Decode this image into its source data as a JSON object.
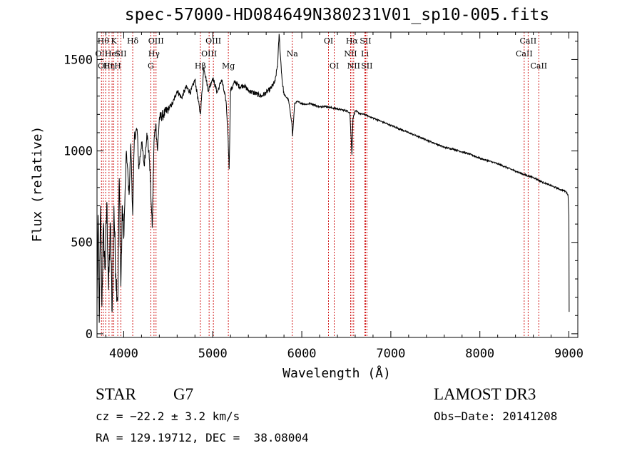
{
  "chart_data": {
    "type": "line",
    "title": "spec-57000-HD084649N380231V01_sp10-005.fits",
    "xlabel": "Wavelength (Å)",
    "ylabel": "Flux (relative)",
    "xlim": [
      3700,
      9100
    ],
    "ylim": [
      -20,
      1650
    ],
    "x_ticks": [
      4000,
      5000,
      6000,
      7000,
      8000,
      9000
    ],
    "x_tick_labels": [
      "4000",
      "5000",
      "6000",
      "7000",
      "8000",
      "9000"
    ],
    "y_ticks": [
      0,
      500,
      1000,
      1500
    ],
    "y_tick_labels": [
      "0",
      "500",
      "1000",
      "1500"
    ],
    "series": [
      {
        "name": "spectrum",
        "color": "#000000",
        "anchors": [
          [
            3700,
            150
          ],
          [
            3712,
            650
          ],
          [
            3725,
            60
          ],
          [
            3740,
            700
          ],
          [
            3755,
            150
          ],
          [
            3770,
            580
          ],
          [
            3790,
            350
          ],
          [
            3810,
            720
          ],
          [
            3830,
            240
          ],
          [
            3850,
            600
          ],
          [
            3870,
            120
          ],
          [
            3890,
            700
          ],
          [
            3910,
            330
          ],
          [
            3933,
            180
          ],
          [
            3950,
            850
          ],
          [
            3968,
            260
          ],
          [
            3985,
            700
          ],
          [
            4000,
            520
          ],
          [
            4030,
            1000
          ],
          [
            4060,
            760
          ],
          [
            4080,
            1040
          ],
          [
            4101,
            650
          ],
          [
            4120,
            1080
          ],
          [
            4150,
            1120
          ],
          [
            4170,
            900
          ],
          [
            4200,
            1050
          ],
          [
            4230,
            920
          ],
          [
            4260,
            1100
          ],
          [
            4290,
            950
          ],
          [
            4310,
            700
          ],
          [
            4320,
            580
          ],
          [
            4340,
            1050
          ],
          [
            4360,
            1150
          ],
          [
            4380,
            1000
          ],
          [
            4400,
            1180
          ],
          [
            4450,
            1200
          ],
          [
            4500,
            1230
          ],
          [
            4550,
            1260
          ],
          [
            4600,
            1330
          ],
          [
            4650,
            1290
          ],
          [
            4700,
            1350
          ],
          [
            4750,
            1320
          ],
          [
            4800,
            1390
          ],
          [
            4861,
            1200
          ],
          [
            4900,
            1460
          ],
          [
            4950,
            1330
          ],
          [
            5000,
            1400
          ],
          [
            5050,
            1320
          ],
          [
            5100,
            1390
          ],
          [
            5150,
            1270
          ],
          [
            5172,
            1080
          ],
          [
            5184,
            900
          ],
          [
            5200,
            1330
          ],
          [
            5250,
            1380
          ],
          [
            5300,
            1350
          ],
          [
            5350,
            1360
          ],
          [
            5400,
            1330
          ],
          [
            5450,
            1320
          ],
          [
            5500,
            1310
          ],
          [
            5550,
            1300
          ],
          [
            5600,
            1320
          ],
          [
            5650,
            1340
          ],
          [
            5700,
            1380
          ],
          [
            5730,
            1480
          ],
          [
            5745,
            1640
          ],
          [
            5760,
            1520
          ],
          [
            5780,
            1380
          ],
          [
            5800,
            1310
          ],
          [
            5850,
            1280
          ],
          [
            5889,
            1150
          ],
          [
            5896,
            1080
          ],
          [
            5920,
            1260
          ],
          [
            5950,
            1270
          ],
          [
            6000,
            1260
          ],
          [
            6050,
            1255
          ],
          [
            6100,
            1260
          ],
          [
            6150,
            1250
          ],
          [
            6200,
            1240
          ],
          [
            6250,
            1245
          ],
          [
            6300,
            1240
          ],
          [
            6350,
            1235
          ],
          [
            6400,
            1230
          ],
          [
            6450,
            1225
          ],
          [
            6500,
            1220
          ],
          [
            6540,
            1210
          ],
          [
            6563,
            980
          ],
          [
            6575,
            1180
          ],
          [
            6600,
            1220
          ],
          [
            6650,
            1205
          ],
          [
            6700,
            1200
          ],
          [
            6750,
            1190
          ],
          [
            6800,
            1180
          ],
          [
            6900,
            1160
          ],
          [
            7000,
            1140
          ],
          [
            7100,
            1120
          ],
          [
            7200,
            1100
          ],
          [
            7300,
            1080
          ],
          [
            7400,
            1060
          ],
          [
            7500,
            1040
          ],
          [
            7600,
            1020
          ],
          [
            7700,
            1010
          ],
          [
            7800,
            995
          ],
          [
            7900,
            980
          ],
          [
            8000,
            960
          ],
          [
            8100,
            945
          ],
          [
            8200,
            930
          ],
          [
            8300,
            910
          ],
          [
            8400,
            890
          ],
          [
            8500,
            870
          ],
          [
            8600,
            855
          ],
          [
            8700,
            830
          ],
          [
            8800,
            810
          ],
          [
            8900,
            790
          ],
          [
            8960,
            780
          ],
          [
            8990,
            760
          ],
          [
            9000,
            650
          ],
          [
            9003,
            120
          ]
        ]
      }
    ],
    "line_markers": [
      {
        "x": 3750,
        "label": "OII",
        "row": 1
      },
      {
        "x": 3770,
        "label": "Hθ",
        "row": 0
      },
      {
        "x": 3797,
        "label": "OIII",
        "row": 2
      },
      {
        "x": 3835,
        "label": "Hη",
        "row": 2
      },
      {
        "x": 3869,
        "label": "HeI",
        "row": 1
      },
      {
        "x": 3889,
        "label": "K",
        "row": 0
      },
      {
        "x": 3933,
        "label": "H",
        "row": 2
      },
      {
        "x": 3968,
        "label": "SII",
        "row": 1
      },
      {
        "x": 4101,
        "label": "Hδ",
        "row": 0
      },
      {
        "x": 4304,
        "label": "G",
        "row": 2
      },
      {
        "x": 4340,
        "label": "Hγ",
        "row": 1
      },
      {
        "x": 4363,
        "label": "OIII",
        "row": 0
      },
      {
        "x": 4861,
        "label": "Hβ",
        "row": 2
      },
      {
        "x": 4959,
        "label": "OIII",
        "row": 1
      },
      {
        "x": 5007,
        "label": "OIII",
        "row": 0
      },
      {
        "x": 5175,
        "label": "Mg",
        "row": 2
      },
      {
        "x": 5893,
        "label": "Na",
        "row": 1
      },
      {
        "x": 6300,
        "label": "OI",
        "row": 0
      },
      {
        "x": 6364,
        "label": "OI",
        "row": 2
      },
      {
        "x": 6548,
        "label": "NII",
        "row": 1
      },
      {
        "x": 6563,
        "label": "Hα",
        "row": 0
      },
      {
        "x": 6583,
        "label": "NII",
        "row": 2
      },
      {
        "x": 6708,
        "label": "Li",
        "row": 1
      },
      {
        "x": 6716,
        "label": "SII",
        "row": 0
      },
      {
        "x": 6731,
        "label": "SII",
        "row": 2
      },
      {
        "x": 8498,
        "label": "CaII",
        "row": 1
      },
      {
        "x": 8542,
        "label": "CaII",
        "row": 0
      },
      {
        "x": 8662,
        "label": "CaII",
        "row": 2
      }
    ],
    "marker_color": "#cc0000"
  },
  "info": {
    "object_class": "STAR",
    "subclass": "G7",
    "survey": "LAMOST DR3",
    "cz": "cz = −22.2 ± 3.2 km/s",
    "obs_date": "Obs−Date: 20141208",
    "coords": "RA = 129.19712, DEC =  38.08004"
  }
}
